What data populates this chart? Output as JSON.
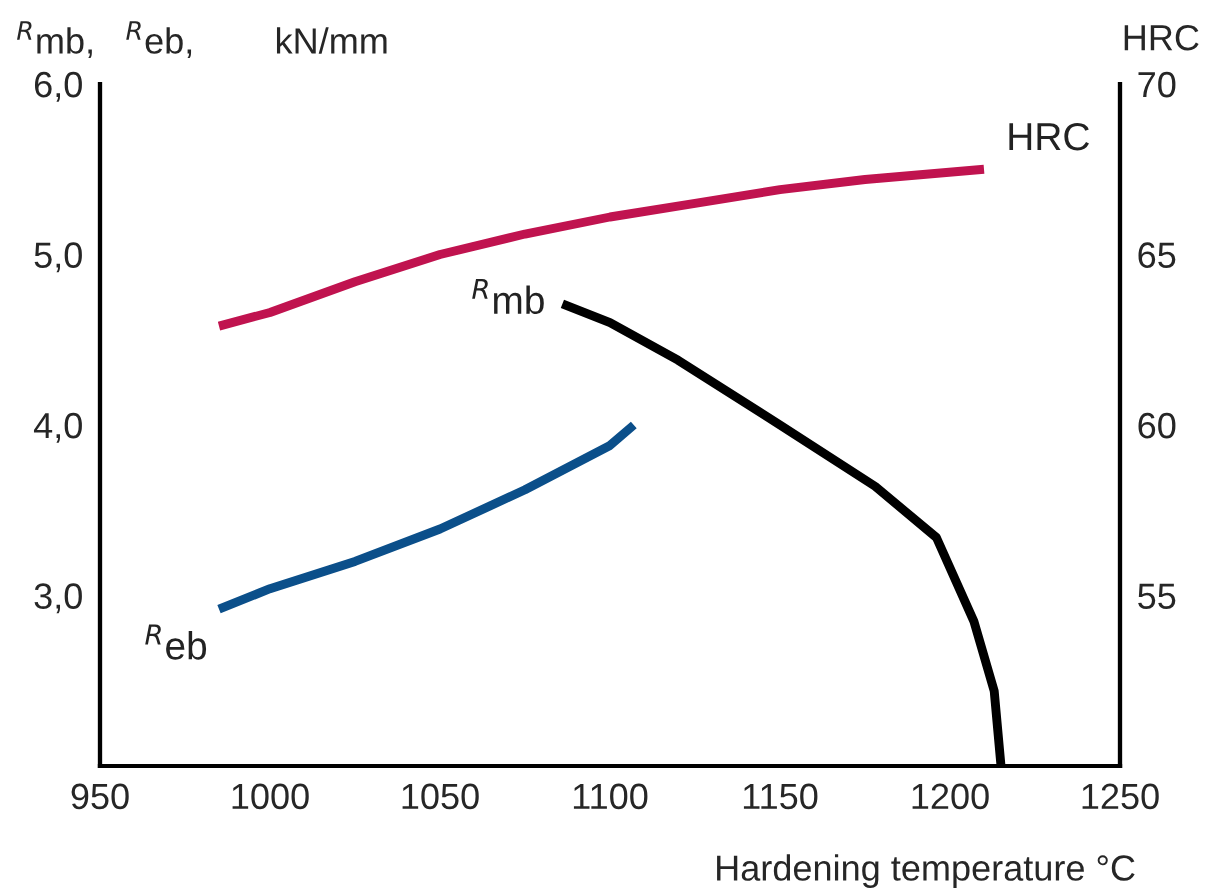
{
  "chart_data": {
    "type": "line",
    "ylabel": "$^{R}$mb,   $^{R}$eb,        kN/mm",
    "y2label": "HRC",
    "xlabel": "Hardening temperature °C",
    "xlim": [
      950,
      1250
    ],
    "xticks": [
      950,
      1000,
      1050,
      1100,
      1150,
      1200,
      1250
    ],
    "ylim": [
      2,
      6
    ],
    "yticks": [
      {
        "value": 3,
        "label": "3,0"
      },
      {
        "value": 4,
        "label": "4,0"
      },
      {
        "value": 5,
        "label": "5,0"
      },
      {
        "value": 6,
        "label": "6,0"
      }
    ],
    "y2lim": [
      50,
      70
    ],
    "y2ticks": [
      55,
      60,
      65,
      70
    ],
    "grid": false,
    "legend": false,
    "line_style": "solid",
    "marker": "none",
    "series": [
      {
        "name": "HRC",
        "color": "#c0134f",
        "axis": "y2",
        "x": [
          985,
          1000,
          1025,
          1050,
          1075,
          1100,
          1125,
          1150,
          1175,
          1210
        ],
        "values": [
          62.9,
          63.3,
          64.2,
          65.0,
          65.6,
          66.1,
          66.5,
          66.9,
          67.2,
          67.5
        ]
      },
      {
        "name": "$^{R}$eb",
        "color": "#0b4f8a",
        "x": [
          985,
          1000,
          1025,
          1050,
          1075,
          1100,
          1107
        ],
        "values": [
          2.92,
          3.04,
          3.2,
          3.39,
          3.62,
          3.88,
          4.0
        ]
      },
      {
        "name": "$^{R}$mb",
        "color": "#000000",
        "x": [
          1086,
          1100,
          1120,
          1150,
          1178,
          1196,
          1207,
          1213,
          1215
        ],
        "values": [
          4.71,
          4.6,
          4.38,
          4.0,
          3.64,
          3.34,
          2.85,
          2.44,
          2.0
        ]
      }
    ]
  }
}
